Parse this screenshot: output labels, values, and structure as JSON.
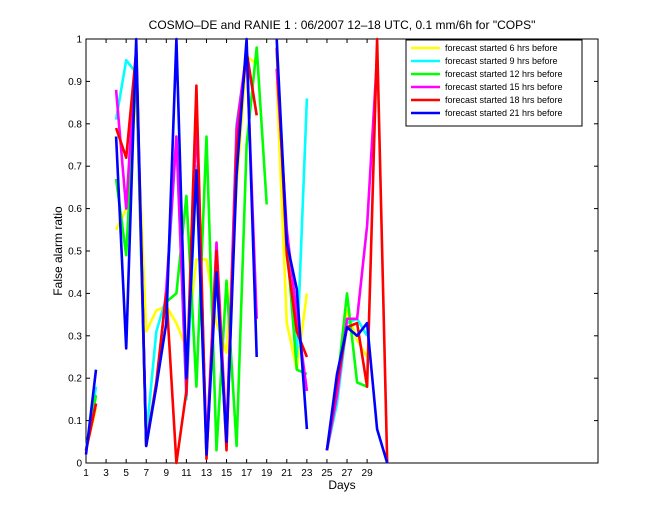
{
  "chart_data": {
    "type": "line",
    "title": "COSMO–DE and RANIE 1 : 06/2007 12–18 UTC, 0.1 mm/6h for \"COPS\"",
    "xlabel": "Days",
    "ylabel": "False alarm ratio",
    "xlim": [
      1,
      52
    ],
    "ylim": [
      0,
      1
    ],
    "x_ticks": [
      1,
      3,
      5,
      7,
      9,
      11,
      13,
      15,
      17,
      19,
      21,
      23,
      25,
      27,
      29
    ],
    "y_ticks": [
      0,
      0.1,
      0.2,
      0.3,
      0.4,
      0.5,
      0.6,
      0.7,
      0.8,
      0.9,
      1
    ],
    "y_tick_labels": [
      "0",
      "0.1",
      "0.2",
      "0.3",
      "0.4",
      "0.5",
      "0.6",
      "0.7",
      "0.8",
      "0.9",
      "1"
    ],
    "grid": false,
    "legend_position": "top-right",
    "x": [
      1,
      2,
      3,
      4,
      5,
      6,
      7,
      8,
      9,
      10,
      11,
      12,
      13,
      14,
      15,
      16,
      17,
      18,
      19,
      20,
      21,
      22,
      23,
      24,
      25,
      26,
      27,
      28,
      29,
      30,
      31
    ],
    "series": [
      {
        "name": "forecast started 6 hrs before",
        "color": "#ffff00",
        "values": [
          0.03,
          0.13,
          null,
          0.55,
          0.6,
          0.87,
          0.31,
          0.36,
          0.37,
          0.33,
          0.27,
          0.48,
          0.48,
          0.33,
          0.26,
          0.65,
          0.96,
          0.94,
          null,
          0.9,
          0.33,
          0.22,
          0.4,
          null,
          0.03,
          0.15,
          0.36,
          0.29,
          0.25,
          null,
          null
        ]
      },
      {
        "name": "forecast started 9 hrs before",
        "color": "#00ffff",
        "values": [
          0.03,
          0.18,
          null,
          0.81,
          0.95,
          0.92,
          0.06,
          0.31,
          0.39,
          0.77,
          0.15,
          0.7,
          0.05,
          0.45,
          0.04,
          0.8,
          0.96,
          0.82,
          null,
          0.97,
          0.51,
          0.25,
          0.86,
          null,
          0.03,
          0.14,
          0.33,
          0.34,
          0.3,
          null,
          null
        ]
      },
      {
        "name": "forecast started 12 hrs before",
        "color": "#00ff00",
        "values": [
          0.03,
          0.16,
          null,
          0.67,
          0.49,
          0.93,
          0.04,
          null,
          0.38,
          0.4,
          0.63,
          0.18,
          0.77,
          0.03,
          0.43,
          0.04,
          0.75,
          0.98,
          0.61,
          null,
          0.52,
          0.22,
          0.21,
          null,
          0.03,
          0.18,
          0.4,
          0.19,
          0.18,
          null,
          null
        ]
      },
      {
        "name": "forecast started 15 hrs before",
        "color": "#ff00ff",
        "values": [
          0.03,
          0.14,
          null,
          0.88,
          0.6,
          0.98,
          0.05,
          0.18,
          0.41,
          0.77,
          0.16,
          0.82,
          0.03,
          0.52,
          0.06,
          0.79,
          0.97,
          0.34,
          null,
          0.93,
          0.55,
          0.35,
          0.17,
          null,
          0.03,
          0.16,
          0.34,
          0.34,
          0.56,
          0.96,
          null
        ]
      },
      {
        "name": "forecast started 18 hrs before",
        "color": "#ff0000",
        "values": [
          0.03,
          0.14,
          null,
          0.79,
          0.72,
          0.97,
          0.04,
          0.19,
          0.4,
          0.0,
          0.17,
          0.89,
          0.01,
          0.5,
          0.03,
          0.74,
          0.97,
          0.82,
          null,
          0.98,
          0.49,
          0.31,
          0.25,
          null,
          0.03,
          0.19,
          0.32,
          0.33,
          0.18,
          1.0,
          0.0
        ]
      },
      {
        "name": "forecast started 21 hrs before",
        "color": "#0000ff",
        "values": [
          0.02,
          0.22,
          null,
          0.77,
          0.27,
          1.0,
          0.04,
          0.18,
          0.33,
          1.0,
          0.2,
          0.69,
          0.02,
          0.45,
          0.05,
          0.68,
          1.0,
          0.25,
          null,
          1.0,
          0.52,
          0.41,
          0.08,
          null,
          0.03,
          0.21,
          0.32,
          0.3,
          0.33,
          0.08,
          0.0
        ]
      }
    ]
  }
}
